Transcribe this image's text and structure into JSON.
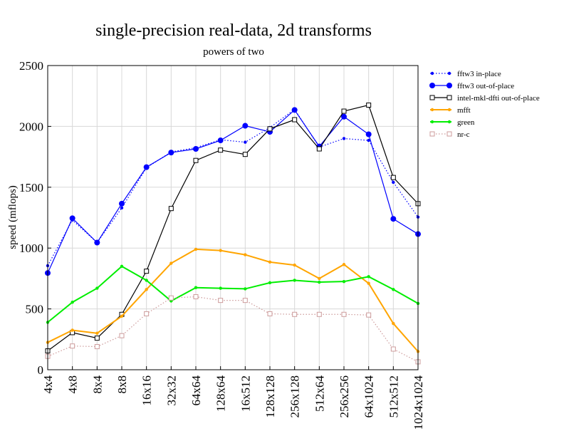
{
  "chart_data": {
    "type": "line",
    "title": "single-precision real-data, 2d transforms",
    "subtitle": "powers of two",
    "xlabel": "",
    "ylabel": "speed (mflops)",
    "ylim": [
      0,
      2500
    ],
    "yticks": [
      0,
      500,
      1000,
      1500,
      2000,
      2500
    ],
    "grid": true,
    "legend_position": "right",
    "categories": [
      "4x4",
      "4x8",
      "8x4",
      "8x8",
      "16x16",
      "32x32",
      "64x64",
      "128x64",
      "16x512",
      "128x128",
      "256x128",
      "512x64",
      "256x256",
      "64x1024",
      "512x512",
      "1024x1024"
    ],
    "series": [
      {
        "name": "fftw3 in-place",
        "color": "#0000ff",
        "style": "dotted",
        "marker": "small-dot",
        "values": [
          855,
          1230,
          1045,
          1330,
          1660,
          1790,
          1825,
          1890,
          1870,
          1990,
          2140,
          1830,
          1900,
          1885,
          1540,
          1255
        ]
      },
      {
        "name": "fftw3 out-of-place",
        "color": "#0000ff",
        "style": "solid",
        "marker": "large-dot",
        "values": [
          795,
          1245,
          1045,
          1365,
          1665,
          1785,
          1815,
          1885,
          2005,
          1955,
          2135,
          1835,
          2080,
          1935,
          1240,
          1115
        ]
      },
      {
        "name": "intel-mkl-dfti out-of-place",
        "color": "#000000",
        "style": "solid",
        "marker": "open-square",
        "values": [
          155,
          305,
          260,
          455,
          810,
          1325,
          1720,
          1805,
          1770,
          1980,
          2055,
          1815,
          2125,
          2175,
          1580,
          1365
        ]
      },
      {
        "name": "mfft",
        "color": "#ffa500",
        "style": "solid",
        "marker": "small-dot",
        "values": [
          225,
          325,
          300,
          440,
          660,
          875,
          990,
          980,
          945,
          885,
          860,
          750,
          865,
          710,
          380,
          150
        ]
      },
      {
        "name": "green",
        "color": "#00ee00",
        "style": "solid",
        "marker": "small-dot",
        "values": [
          390,
          555,
          670,
          850,
          735,
          565,
          675,
          670,
          665,
          715,
          735,
          720,
          725,
          765,
          660,
          545
        ]
      },
      {
        "name": "nr-c",
        "color": "#cd9b9b",
        "style": "dotted",
        "marker": "open-square",
        "values": [
          110,
          195,
          190,
          280,
          460,
          590,
          600,
          570,
          570,
          460,
          455,
          455,
          455,
          450,
          170,
          65
        ]
      }
    ]
  }
}
